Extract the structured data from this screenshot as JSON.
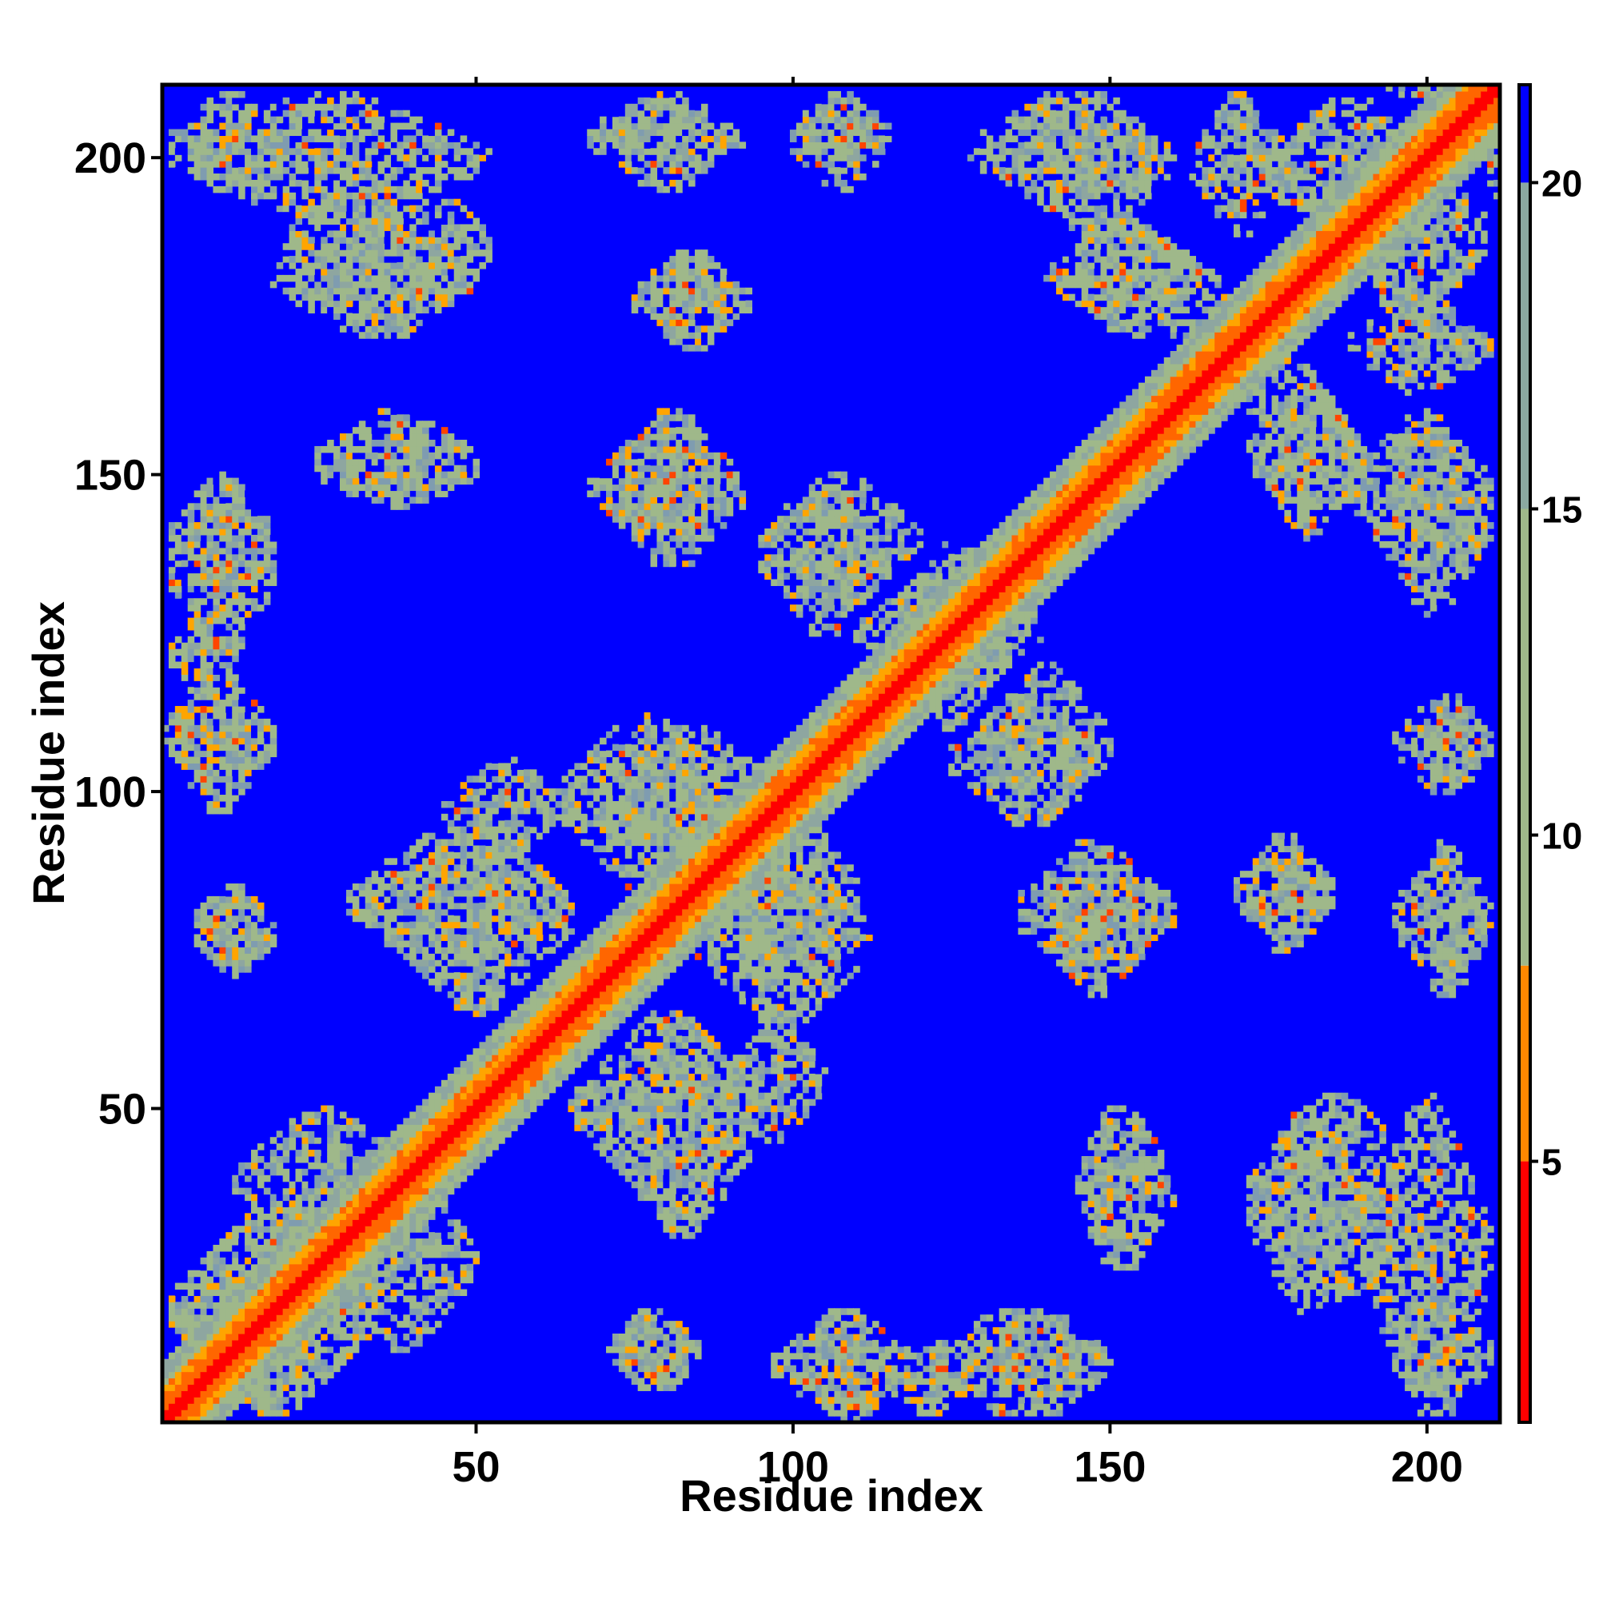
{
  "chart_data": {
    "type": "heatmap",
    "title": "",
    "xlabel": "Residue index",
    "ylabel": "Residue index",
    "xlim": [
      1,
      211
    ],
    "ylim": [
      1,
      211
    ],
    "x_ticks": [
      50,
      100,
      150,
      200
    ],
    "y_ticks": [
      50,
      100,
      150,
      200
    ],
    "n_residues": 211,
    "colorbar": {
      "ticks": [
        5,
        10,
        15,
        20
      ],
      "range": [
        1,
        21.5
      ],
      "stops": [
        {
          "value": 1,
          "color": "#ff0000"
        },
        {
          "value": 5,
          "color": "#ff6600"
        },
        {
          "value": 8,
          "color": "#ffa500"
        },
        {
          "value": 8.1,
          "color": "#9fb88a"
        },
        {
          "value": 13,
          "color": "#9fb88a"
        },
        {
          "value": 20,
          "color": "#5878b0"
        },
        {
          "value": 20.1,
          "color": "#0000ff"
        }
      ]
    },
    "background_color": "#0000ff",
    "diagonal_bands": [
      {
        "offset_max": 1,
        "color": "#ff0000"
      },
      {
        "offset_max": 3,
        "color": "#ff6600"
      },
      {
        "offset_max": 5,
        "color": "#ffa500"
      },
      {
        "offset_max": 9,
        "color": "#9fb88a"
      }
    ],
    "contact_patches": [
      {
        "x": [
          2,
          20
        ],
        "y": [
          195,
          210
        ]
      },
      {
        "x": [
          20,
          52
        ],
        "y": [
          172,
          200
        ]
      },
      {
        "x": [
          70,
          90
        ],
        "y": [
          200,
          210
        ]
      },
      {
        "x": [
          100,
          115
        ],
        "y": [
          198,
          210
        ]
      },
      {
        "x": [
          75,
          93
        ],
        "y": [
          170,
          185
        ]
      },
      {
        "x": [
          135,
          160
        ],
        "y": [
          188,
          210
        ]
      },
      {
        "x": [
          143,
          167
        ],
        "y": [
          172,
          188
        ]
      },
      {
        "x": [
          163,
          178
        ],
        "y": [
          188,
          210
        ]
      },
      {
        "x": [
          188,
          209
        ],
        "y": [
          170,
          205
        ]
      },
      {
        "x": [
          167,
          178
        ],
        "y": [
          160,
          180
        ]
      },
      {
        "x": [
          173,
          190
        ],
        "y": [
          140,
          165
        ]
      },
      {
        "x": [
          192,
          210
        ],
        "y": [
          128,
          157
        ]
      },
      {
        "x": [
          2,
          18
        ],
        "y": [
          130,
          150
        ]
      },
      {
        "x": [
          2,
          12
        ],
        "y": [
          115,
          128
        ]
      },
      {
        "x": [
          2,
          18
        ],
        "y": [
          100,
          115
        ]
      },
      {
        "x": [
          25,
          50
        ],
        "y": [
          145,
          155
        ]
      },
      {
        "x": [
          68,
          90
        ],
        "y": [
          138,
          158
        ]
      },
      {
        "x": [
          95,
          115
        ],
        "y": [
          125,
          148
        ]
      },
      {
        "x": [
          115,
          135
        ],
        "y": [
          110,
          140
        ]
      },
      {
        "x": [
          130,
          150
        ],
        "y": [
          95,
          120
        ]
      },
      {
        "x": [
          135,
          160
        ],
        "y": [
          70,
          92
        ]
      },
      {
        "x": [
          172,
          185
        ],
        "y": [
          75,
          92
        ]
      },
      {
        "x": [
          195,
          210
        ],
        "y": [
          100,
          115
        ]
      },
      {
        "x": [
          195,
          210
        ],
        "y": [
          68,
          92
        ]
      },
      {
        "x": [
          30,
          65
        ],
        "y": [
          70,
          95
        ]
      },
      {
        "x": [
          63,
          90
        ],
        "y": [
          85,
          112
        ]
      },
      {
        "x": [
          85,
          110
        ],
        "y": [
          68,
          100
        ]
      },
      {
        "x": [
          65,
          95
        ],
        "y": [
          35,
          65
        ]
      },
      {
        "x": [
          90,
          105
        ],
        "y": [
          45,
          65
        ]
      },
      {
        "x": [
          5,
          18
        ],
        "y": [
          72,
          85
        ]
      },
      {
        "x": [
          2,
          35
        ],
        "y": [
          2,
          35
        ]
      },
      {
        "x": [
          28,
          50
        ],
        "y": [
          12,
          40
        ]
      },
      {
        "x": [
          70,
          85
        ],
        "y": [
          7,
          18
        ]
      },
      {
        "x": [
          97,
          120
        ],
        "y": [
          1,
          18
        ]
      },
      {
        "x": [
          120,
          150
        ],
        "y": [
          2,
          18
        ]
      },
      {
        "x": [
          145,
          160
        ],
        "y": [
          25,
          50
        ]
      },
      {
        "x": [
          172,
          190
        ],
        "y": [
          18,
          50
        ]
      },
      {
        "x": [
          190,
          210
        ],
        "y": [
          2,
          52
        ]
      },
      {
        "x": [
          210,
          211
        ],
        "y": [
          190,
          211
        ]
      }
    ]
  },
  "colorbar_color_bands": [
    {
      "from": 1,
      "to": 5,
      "color": "#ff0000"
    },
    {
      "from": 5,
      "to": 8,
      "color": "#ff8800"
    },
    {
      "from": 8,
      "to": 20,
      "color": "#9fb88a"
    },
    {
      "from": 20,
      "to": 21.5,
      "color": "#0000ff"
    }
  ]
}
